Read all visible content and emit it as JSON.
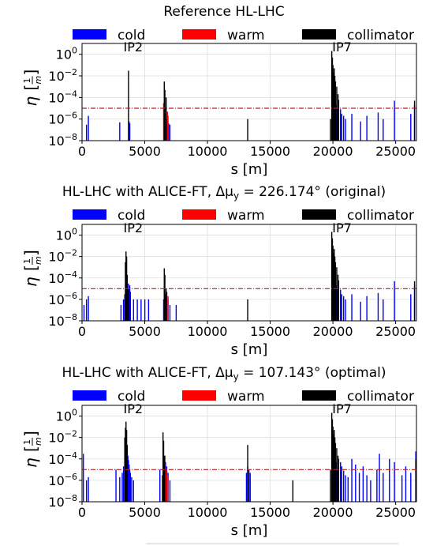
{
  "figure": {
    "legend": [
      {
        "label": "cold",
        "color": "#0000ff"
      },
      {
        "label": "warm",
        "color": "#ff0000"
      },
      {
        "label": "collimator",
        "color": "#000000"
      }
    ],
    "colors": {
      "threshold_line": "#b22222",
      "grid": "#dddddd"
    }
  },
  "chart_data": [
    {
      "type": "bar",
      "title": "Reference HL-LHC",
      "xlabel": "s [m]",
      "ylabel": "η [1/m]",
      "xlim": [
        0,
        26659
      ],
      "ylim_exponents": [
        -8,
        1
      ],
      "yscale": "log",
      "x_ticks": [
        "0",
        "5000",
        "10000",
        "15000",
        "20000",
        "25000"
      ],
      "y_ticks": [
        "10^-8",
        "10^-6",
        "10^-4",
        "10^-2",
        "10^0"
      ],
      "annotations": [
        "IP2",
        "IP7"
      ],
      "threshold": 1e-05,
      "grid": true,
      "legend_position": "top",
      "series": [
        {
          "name": "cold",
          "points": [
            [
              350,
              3e-07
            ],
            [
              500,
              2e-06
            ],
            [
              3000,
              5e-07
            ],
            [
              3750,
              6e-07
            ],
            [
              3800,
              4e-07
            ],
            [
              6600,
              5e-07
            ],
            [
              6750,
              1e-06
            ],
            [
              6900,
              4e-07
            ],
            [
              7000,
              3e-07
            ],
            [
              20050,
              5e-05
            ],
            [
              20150,
              0.0001
            ],
            [
              20250,
              2e-05
            ],
            [
              20350,
              1e-05
            ],
            [
              20450,
              6e-05
            ],
            [
              20600,
              8e-06
            ],
            [
              20700,
              3e-06
            ],
            [
              20850,
              2e-06
            ],
            [
              21000,
              1e-06
            ],
            [
              21500,
              3e-06
            ],
            [
              22200,
              6e-07
            ],
            [
              22700,
              2e-06
            ],
            [
              23600,
              4e-06
            ],
            [
              24000,
              1e-06
            ],
            [
              24900,
              5e-05
            ],
            [
              26200,
              3e-06
            ],
            [
              26500,
              2e-05
            ]
          ]
        },
        {
          "name": "warm",
          "points": [
            [
              6500,
              3e-05
            ],
            [
              6650,
              1e-05
            ],
            [
              6800,
              5e-06
            ],
            [
              6850,
              2e-06
            ],
            [
              19950,
              1e-06
            ],
            [
              20100,
              3e-06
            ]
          ]
        },
        {
          "name": "collimator",
          "points": [
            [
              3700,
              0.03
            ],
            [
              6550,
              0.003
            ],
            [
              6600,
              0.0005
            ],
            [
              6700,
              0.0001
            ],
            [
              13200,
              1e-06
            ],
            [
              19800,
              1e-06
            ],
            [
              19900,
              2.0
            ],
            [
              19950,
              0.5
            ],
            [
              20000,
              0.1
            ],
            [
              20050,
              0.02
            ],
            [
              20100,
              0.05
            ],
            [
              20150,
              0.01
            ],
            [
              20200,
              0.003
            ],
            [
              20300,
              0.001
            ],
            [
              20400,
              0.0002
            ],
            [
              26500,
              5e-05
            ]
          ]
        }
      ]
    },
    {
      "type": "bar",
      "title": "HL-LHC with ALICE-FT, Δμy = 226.174° (original)",
      "xlabel": "s [m]",
      "ylabel": "η [1/m]",
      "xlim": [
        0,
        26659
      ],
      "ylim_exponents": [
        -8,
        1
      ],
      "yscale": "log",
      "x_ticks": [
        "0",
        "5000",
        "10000",
        "15000",
        "20000",
        "25000"
      ],
      "y_ticks": [
        "10^-8",
        "10^-6",
        "10^-4",
        "10^-2",
        "10^0"
      ],
      "annotations": [
        "IP2",
        "IP7"
      ],
      "threshold": 1e-05,
      "grid": true,
      "legend_position": "top",
      "series": [
        {
          "name": "cold",
          "points": [
            [
              150,
              3e-07
            ],
            [
              350,
              1e-06
            ],
            [
              500,
              2e-06
            ],
            [
              3100,
              3e-07
            ],
            [
              3300,
              1e-06
            ],
            [
              3400,
              3e-06
            ],
            [
              3550,
              2e-06
            ],
            [
              3650,
              8e-06
            ],
            [
              3700,
              3e-05
            ],
            [
              3750,
              1e-05
            ],
            [
              3800,
              2e-05
            ],
            [
              3850,
              5e-06
            ],
            [
              4100,
              1e-06
            ],
            [
              4400,
              1e-06
            ],
            [
              4700,
              1e-06
            ],
            [
              5000,
              1e-06
            ],
            [
              5300,
              1e-06
            ],
            [
              6500,
              1e-06
            ],
            [
              6650,
              3e-06
            ],
            [
              6750,
              5e-06
            ],
            [
              6850,
              1e-06
            ],
            [
              7000,
              3e-07
            ],
            [
              7500,
              3e-07
            ],
            [
              20050,
              5e-05
            ],
            [
              20150,
              0.0001
            ],
            [
              20250,
              2e-05
            ],
            [
              20350,
              1e-05
            ],
            [
              20450,
              6e-05
            ],
            [
              20600,
              8e-06
            ],
            [
              20700,
              3e-06
            ],
            [
              20850,
              2e-06
            ],
            [
              21000,
              1e-06
            ],
            [
              21500,
              3e-06
            ],
            [
              22200,
              6e-07
            ],
            [
              22700,
              2e-06
            ],
            [
              23600,
              4e-06
            ],
            [
              24000,
              1e-06
            ],
            [
              24900,
              5e-05
            ],
            [
              26200,
              3e-06
            ],
            [
              26500,
              2e-05
            ]
          ]
        },
        {
          "name": "warm",
          "points": [
            [
              3500,
              2e-06
            ],
            [
              3600,
              5e-06
            ],
            [
              6550,
              2e-05
            ],
            [
              6700,
              5e-06
            ],
            [
              6850,
              2e-06
            ],
            [
              20100,
              3e-06
            ]
          ]
        },
        {
          "name": "collimator",
          "points": [
            [
              3450,
              0.003
            ],
            [
              3500,
              0.03
            ],
            [
              3550,
              0.01
            ],
            [
              3600,
              0.0002
            ],
            [
              3700,
              1e-05
            ],
            [
              6550,
              0.0008
            ],
            [
              6600,
              0.0002
            ],
            [
              6700,
              1e-05
            ],
            [
              13200,
              1e-06
            ],
            [
              19900,
              2.0
            ],
            [
              19950,
              0.5
            ],
            [
              20000,
              0.1
            ],
            [
              20050,
              0.02
            ],
            [
              20100,
              0.05
            ],
            [
              20150,
              0.01
            ],
            [
              20200,
              0.003
            ],
            [
              20300,
              0.001
            ],
            [
              20400,
              0.0002
            ],
            [
              26500,
              5e-05
            ]
          ]
        }
      ]
    },
    {
      "type": "bar",
      "title": "HL-LHC with ALICE-FT, Δμy = 107.143° (optimal)",
      "xlabel": "s [m]",
      "ylabel": "η [1/m]",
      "xlim": [
        0,
        26659
      ],
      "ylim_exponents": [
        -8,
        1
      ],
      "yscale": "log",
      "x_ticks": [
        "0",
        "5000",
        "10000",
        "15000",
        "20000",
        "25000"
      ],
      "y_ticks": [
        "10^-8",
        "10^-6",
        "10^-4",
        "10^-2",
        "10^0"
      ],
      "annotations": [
        "IP2",
        "IP7"
      ],
      "threshold": 1e-05,
      "grid": true,
      "legend_position": "top",
      "series": [
        {
          "name": "cold",
          "points": [
            [
              100,
              0.0003
            ],
            [
              350,
              1e-06
            ],
            [
              500,
              2e-06
            ],
            [
              2700,
              1e-05
            ],
            [
              3000,
              2e-06
            ],
            [
              3200,
              5e-06
            ],
            [
              3300,
              2e-05
            ],
            [
              3400,
              0.0001
            ],
            [
              3500,
              0.0005
            ],
            [
              3550,
              0.001
            ],
            [
              3600,
              0.0005
            ],
            [
              3650,
              0.0002
            ],
            [
              3700,
              8e-05
            ],
            [
              3750,
              3e-05
            ],
            [
              3800,
              1e-05
            ],
            [
              3850,
              5e-06
            ],
            [
              3950,
              2e-06
            ],
            [
              4100,
              1e-06
            ],
            [
              6200,
              1e-05
            ],
            [
              6400,
              3e-06
            ],
            [
              6600,
              0.0002
            ],
            [
              6650,
              5e-05
            ],
            [
              6750,
              2e-05
            ],
            [
              6850,
              5e-06
            ],
            [
              7000,
              1e-06
            ],
            [
              13100,
              5e-06
            ],
            [
              13200,
              2e-05
            ],
            [
              13300,
              1e-05
            ],
            [
              13400,
              5e-06
            ],
            [
              20050,
              8e-05
            ],
            [
              20150,
              0.0001
            ],
            [
              20250,
              5e-05
            ],
            [
              20350,
              1e-05
            ],
            [
              20450,
              0.0001
            ],
            [
              20600,
              5e-05
            ],
            [
              20700,
              2e-05
            ],
            [
              20850,
              8e-06
            ],
            [
              21000,
              3e-06
            ],
            [
              21200,
              2e-06
            ],
            [
              21500,
              0.0001
            ],
            [
              21800,
              3e-05
            ],
            [
              22100,
              5e-06
            ],
            [
              22400,
              2e-05
            ],
            [
              22700,
              3e-06
            ],
            [
              23000,
              1e-06
            ],
            [
              23500,
              1e-05
            ],
            [
              23700,
              0.0003
            ],
            [
              24000,
              5e-06
            ],
            [
              24500,
              0.0001
            ],
            [
              24900,
              5e-05
            ],
            [
              25500,
              3e-06
            ],
            [
              25800,
              2e-05
            ],
            [
              26200,
              5e-06
            ],
            [
              26600,
              0.0005
            ]
          ]
        },
        {
          "name": "warm",
          "points": [
            [
              3450,
              1e-05
            ],
            [
              3550,
              5e-06
            ],
            [
              6550,
              5e-05
            ],
            [
              6700,
              1e-05
            ],
            [
              6850,
              3e-06
            ],
            [
              20100,
              5e-06
            ]
          ]
        },
        {
          "name": "collimator",
          "points": [
            [
              3400,
              0.01
            ],
            [
              3450,
              0.08
            ],
            [
              3500,
              0.3
            ],
            [
              3550,
              0.05
            ],
            [
              3600,
              0.002
            ],
            [
              6450,
              0.03
            ],
            [
              6500,
              0.005
            ],
            [
              6550,
              0.0002
            ],
            [
              13200,
              0.002
            ],
            [
              16800,
              1e-06
            ],
            [
              19800,
              1e-05
            ],
            [
              19900,
              2.0
            ],
            [
              19950,
              0.5
            ],
            [
              20000,
              0.1
            ],
            [
              20050,
              0.02
            ],
            [
              20100,
              0.05
            ],
            [
              20150,
              0.01
            ],
            [
              20200,
              0.003
            ],
            [
              20300,
              0.001
            ],
            [
              20400,
              0.0002
            ],
            [
              26600,
              0.0001
            ]
          ]
        }
      ]
    }
  ]
}
